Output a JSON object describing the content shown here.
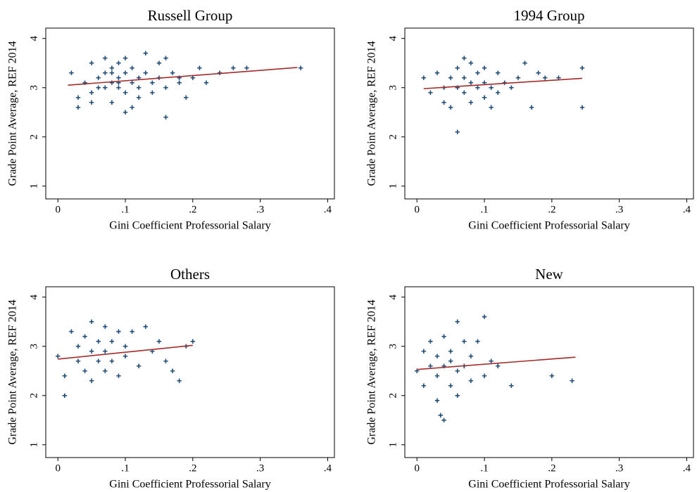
{
  "chart_data": [
    {
      "type": "scatter",
      "title": "Russell Group",
      "xlabel": "Gini Coefficient Professorial Salary",
      "ylabel": "Grade Point Average, REF 2014",
      "xlim": [
        -0.018,
        0.41
      ],
      "ylim": [
        0.74,
        4.21
      ],
      "xticks": [
        0,
        {
          "value": 0.1,
          "label": ".1"
        },
        {
          "value": 0.2,
          "label": ".2"
        },
        {
          "value": 0.3,
          "label": ".3"
        },
        {
          "value": 0.4,
          "label": ".4"
        }
      ],
      "yticks": [
        1,
        2,
        3,
        4
      ],
      "series": [
        {
          "color": "#1f4e79",
          "marker": "+",
          "x": [
            0.02,
            0.03,
            0.04,
            0.05,
            0.05,
            0.06,
            0.06,
            0.07,
            0.07,
            0.08,
            0.08,
            0.08,
            0.09,
            0.09,
            0.09,
            0.1,
            0.1,
            0.1,
            0.11,
            0.11,
            0.11,
            0.12,
            0.12,
            0.13,
            0.13,
            0.14,
            0.14,
            0.15,
            0.15,
            0.16,
            0.16,
            0.17,
            0.18,
            0.19,
            0.2,
            0.21,
            0.22,
            0.24,
            0.26,
            0.28,
            0.36,
            0.03,
            0.05,
            0.07,
            0.09,
            0.12,
            0.16,
            0.18,
            0.1,
            0.08
          ],
          "values": [
            3.3,
            2.8,
            3.1,
            3.5,
            2.9,
            3.2,
            3.0,
            3.6,
            3.3,
            3.1,
            2.7,
            3.4,
            3.0,
            3.5,
            3.2,
            3.3,
            2.9,
            3.6,
            3.1,
            3.4,
            2.6,
            3.2,
            3.0,
            3.7,
            3.3,
            3.1,
            2.9,
            3.5,
            3.2,
            3.0,
            2.4,
            3.3,
            3.1,
            2.8,
            3.2,
            3.4,
            3.1,
            3.3,
            3.4,
            3.4,
            3.4,
            2.6,
            2.7,
            3.0,
            3.1,
            2.8,
            3.6,
            3.2,
            2.5,
            3.3
          ]
        },
        {
          "color": "#a52a2a",
          "mode": "line",
          "x": [
            0.015,
            0.355
          ],
          "values": [
            3.05,
            3.41
          ]
        }
      ]
    },
    {
      "type": "scatter",
      "title": "1994 Group",
      "xlabel": "Gini Coefficient Professorial Salary",
      "ylabel": "Grade Point Average, REF 2014",
      "xlim": [
        -0.018,
        0.41
      ],
      "ylim": [
        0.74,
        4.21
      ],
      "xticks": [
        0,
        {
          "value": 0.1,
          "label": ".1"
        },
        {
          "value": 0.2,
          "label": ".2"
        },
        {
          "value": 0.3,
          "label": ".3"
        },
        {
          "value": 0.4,
          "label": ".4"
        }
      ],
      "yticks": [
        1,
        2,
        3,
        4
      ],
      "series": [
        {
          "color": "#1f4e79",
          "marker": "+",
          "x": [
            0.01,
            0.02,
            0.03,
            0.04,
            0.04,
            0.05,
            0.05,
            0.06,
            0.06,
            0.06,
            0.07,
            0.07,
            0.07,
            0.08,
            0.08,
            0.08,
            0.09,
            0.09,
            0.1,
            0.1,
            0.1,
            0.11,
            0.11,
            0.12,
            0.12,
            0.13,
            0.14,
            0.15,
            0.16,
            0.17,
            0.18,
            0.19,
            0.21,
            0.245,
            0.245
          ],
          "values": [
            3.2,
            2.9,
            3.3,
            3.0,
            2.7,
            3.2,
            2.6,
            3.0,
            2.1,
            3.4,
            3.6,
            2.9,
            3.2,
            3.1,
            2.7,
            3.5,
            3.0,
            3.3,
            2.8,
            3.4,
            3.1,
            3.0,
            2.6,
            3.3,
            2.9,
            3.1,
            3.0,
            3.2,
            3.5,
            2.6,
            3.3,
            3.2,
            3.2,
            3.4,
            2.6
          ]
        },
        {
          "color": "#a52a2a",
          "mode": "line",
          "x": [
            0.01,
            0.245
          ],
          "values": [
            2.98,
            3.19
          ]
        }
      ]
    },
    {
      "type": "scatter",
      "title": "Others",
      "xlabel": "Gini Coefficient Professorial Salary",
      "ylabel": "Grade Point Average, REF 2014",
      "xlim": [
        -0.018,
        0.41
      ],
      "ylim": [
        0.74,
        4.21
      ],
      "xticks": [
        0,
        {
          "value": 0.1,
          "label": ".1"
        },
        {
          "value": 0.2,
          "label": ".2"
        },
        {
          "value": 0.3,
          "label": ".3"
        },
        {
          "value": 0.4,
          "label": ".4"
        }
      ],
      "yticks": [
        1,
        2,
        3,
        4
      ],
      "series": [
        {
          "color": "#1f4e79",
          "marker": "+",
          "x": [
            0.0,
            0.01,
            0.01,
            0.02,
            0.03,
            0.03,
            0.04,
            0.04,
            0.05,
            0.05,
            0.05,
            0.06,
            0.06,
            0.07,
            0.07,
            0.07,
            0.08,
            0.08,
            0.09,
            0.09,
            0.1,
            0.1,
            0.11,
            0.12,
            0.13,
            0.14,
            0.15,
            0.16,
            0.17,
            0.18,
            0.19,
            0.2
          ],
          "values": [
            2.8,
            2.0,
            2.4,
            3.3,
            2.7,
            3.0,
            2.5,
            3.2,
            2.9,
            3.5,
            2.3,
            3.1,
            2.7,
            3.4,
            2.5,
            2.9,
            3.1,
            2.7,
            3.3,
            2.4,
            3.0,
            2.8,
            3.3,
            2.6,
            3.4,
            2.9,
            3.1,
            2.7,
            2.5,
            2.3,
            3.0,
            3.1
          ]
        },
        {
          "color": "#a52a2a",
          "mode": "line",
          "x": [
            0.0,
            0.2
          ],
          "values": [
            2.74,
            3.02
          ]
        }
      ]
    },
    {
      "type": "scatter",
      "title": "New",
      "xlabel": "Gini Coefficient Professorial Salary",
      "ylabel": "Grade Point Average, REF 2014",
      "xlim": [
        -0.018,
        0.41
      ],
      "ylim": [
        0.74,
        4.21
      ],
      "xticks": [
        0,
        {
          "value": 0.1,
          "label": ".1"
        },
        {
          "value": 0.2,
          "label": ".2"
        },
        {
          "value": 0.3,
          "label": ".3"
        },
        {
          "value": 0.4,
          "label": ".4"
        }
      ],
      "yticks": [
        1,
        2,
        3,
        4
      ],
      "series": [
        {
          "color": "#1f4e79",
          "marker": "+",
          "x": [
            0.0,
            0.01,
            0.01,
            0.02,
            0.02,
            0.03,
            0.03,
            0.03,
            0.04,
            0.04,
            0.04,
            0.05,
            0.05,
            0.05,
            0.06,
            0.06,
            0.06,
            0.07,
            0.07,
            0.08,
            0.08,
            0.09,
            0.1,
            0.1,
            0.11,
            0.12,
            0.14,
            0.2,
            0.23,
            0.035
          ],
          "values": [
            2.5,
            2.9,
            2.2,
            3.1,
            2.6,
            2.8,
            1.9,
            2.4,
            3.2,
            2.6,
            1.5,
            2.9,
            2.2,
            2.7,
            3.5,
            2.5,
            2.0,
            3.1,
            2.6,
            2.8,
            2.3,
            3.1,
            3.6,
            2.4,
            2.7,
            2.6,
            2.2,
            2.4,
            2.3,
            1.6
          ]
        },
        {
          "color": "#a52a2a",
          "mode": "line",
          "x": [
            0.0,
            0.235
          ],
          "values": [
            2.53,
            2.78
          ]
        }
      ]
    }
  ]
}
